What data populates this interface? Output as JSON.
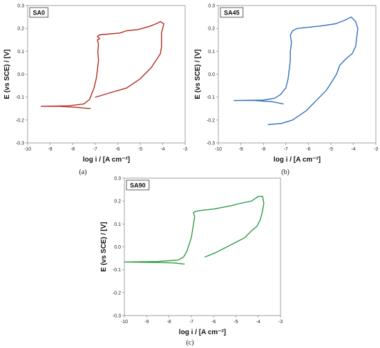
{
  "figure": {
    "captions": [
      "(a)",
      "(b)",
      "(c)"
    ]
  },
  "chart_data": [
    {
      "type": "line",
      "panel_label": "SA0",
      "xlabel": "log i / [A cm⁻²]",
      "ylabel": "E (vs SCE) / [V]",
      "xlim": [
        -10,
        -3
      ],
      "ylim": [
        -0.3,
        0.3
      ],
      "xticks": [
        -10,
        -9,
        -8,
        -7,
        -6,
        -5,
        -4,
        -3
      ],
      "yticks": [
        -0.3,
        -0.2,
        -0.1,
        0.0,
        0.1,
        0.2,
        0.3
      ],
      "color": "#b5281c",
      "grid": false,
      "series": [
        {
          "x": [
            -7.2,
            -7.8,
            -8.6,
            -9.4,
            -8.2,
            -7.5,
            -7.25,
            -7.05,
            -6.95,
            -6.9,
            -6.85,
            -6.88,
            -6.85,
            -6.9,
            -6.8,
            -6.85,
            -6.9,
            -6.8,
            -5.9,
            -5.6,
            -5.1,
            -4.9,
            -4.55,
            -4.3,
            -4.1,
            -3.95,
            -4.05,
            -4.05,
            -4.1,
            -4.3,
            -4.5,
            -4.8,
            -5.0,
            -5.3,
            -5.6,
            -6.3,
            -6.8,
            -7.0
          ],
          "y": [
            -0.15,
            -0.145,
            -0.14,
            -0.14,
            -0.138,
            -0.13,
            -0.11,
            -0.06,
            -0.02,
            0.02,
            0.06,
            0.1,
            0.13,
            0.15,
            0.155,
            0.16,
            0.165,
            0.172,
            0.18,
            0.19,
            0.195,
            0.2,
            0.21,
            0.22,
            0.23,
            0.22,
            0.18,
            0.12,
            0.09,
            0.06,
            0.03,
            0.0,
            -0.02,
            -0.04,
            -0.06,
            -0.08,
            -0.095,
            -0.1
          ]
        }
      ]
    },
    {
      "type": "line",
      "panel_label": "SA45",
      "xlabel": "log i / [A cm⁻²]",
      "ylabel": "E (vs SCE) / [V]",
      "xlim": [
        -10,
        -3
      ],
      "ylim": [
        -0.3,
        0.3
      ],
      "xticks": [
        -10,
        -9,
        -8,
        -7,
        -6,
        -5,
        -4,
        -3
      ],
      "yticks": [
        -0.3,
        -0.2,
        -0.1,
        0.0,
        0.1,
        0.2,
        0.3
      ],
      "color": "#2e6fbf",
      "grid": false,
      "series": [
        {
          "x": [
            -7.1,
            -7.6,
            -8.4,
            -9.3,
            -8.0,
            -7.5,
            -7.25,
            -7.0,
            -6.9,
            -6.85,
            -6.8,
            -6.8,
            -6.75,
            -6.8,
            -6.7,
            -6.5,
            -5.5,
            -4.8,
            -4.4,
            -4.1,
            -3.9,
            -3.8,
            -3.85,
            -3.9,
            -4.05,
            -4.3,
            -4.6,
            -4.75,
            -5.0,
            -5.2,
            -5.5,
            -5.8,
            -6.1,
            -6.4,
            -6.7,
            -7.2,
            -7.8
          ],
          "y": [
            -0.13,
            -0.12,
            -0.115,
            -0.115,
            -0.113,
            -0.105,
            -0.09,
            -0.06,
            -0.02,
            0.02,
            0.06,
            0.1,
            0.14,
            0.17,
            0.19,
            0.2,
            0.21,
            0.22,
            0.235,
            0.25,
            0.23,
            0.2,
            0.16,
            0.12,
            0.09,
            0.07,
            0.04,
            0.0,
            -0.04,
            -0.07,
            -0.1,
            -0.13,
            -0.16,
            -0.18,
            -0.2,
            -0.215,
            -0.22
          ]
        }
      ]
    },
    {
      "type": "line",
      "panel_label": "SA90",
      "xlabel": "log i / [A cm⁻²]",
      "ylabel": "E (vs SCE) / [V]",
      "xlim": [
        -10,
        -3
      ],
      "ylim": [
        -0.3,
        0.3
      ],
      "xticks": [
        -10,
        -9,
        -8,
        -7,
        -6,
        -5,
        -4,
        -3
      ],
      "yticks": [
        -0.3,
        -0.2,
        -0.1,
        0.0,
        0.1,
        0.2,
        0.3
      ],
      "color": "#2e9a44",
      "grid": false,
      "series": [
        {
          "x": [
            -7.3,
            -7.8,
            -8.7,
            -10.0,
            -8.5,
            -7.6,
            -7.35,
            -7.2,
            -7.1,
            -7.0,
            -6.95,
            -6.9,
            -6.85,
            -6.9,
            -6.8,
            -6.5,
            -6.0,
            -5.2,
            -4.8,
            -4.3,
            -4.0,
            -3.8,
            -3.75,
            -3.8,
            -3.9,
            -4.05,
            -4.3,
            -4.6,
            -5.0,
            -5.4,
            -5.9,
            -6.4
          ],
          "y": [
            -0.075,
            -0.07,
            -0.068,
            -0.066,
            -0.064,
            -0.058,
            -0.045,
            -0.02,
            0.01,
            0.04,
            0.07,
            0.1,
            0.13,
            0.15,
            0.155,
            0.16,
            0.165,
            0.18,
            0.19,
            0.2,
            0.22,
            0.22,
            0.19,
            0.16,
            0.12,
            0.09,
            0.07,
            0.04,
            0.02,
            0.0,
            -0.025,
            -0.045
          ]
        }
      ]
    }
  ]
}
